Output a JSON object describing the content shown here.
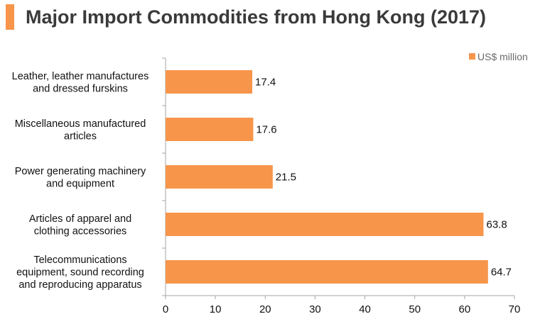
{
  "title": "Major Import Commodities from Hong Kong (2017)",
  "colors": {
    "accent": "#f7954a",
    "axis": "#a6a6a6"
  },
  "chart_data": {
    "type": "bar",
    "orientation": "horizontal",
    "title": "Major Import Commodities from Hong Kong (2017)",
    "categories": [
      [
        "Leather, leather manufactures",
        "and dressed furskins"
      ],
      [
        "Miscellaneous manufactured",
        "articles"
      ],
      [
        "Power generating machinery",
        "and equipment"
      ],
      [
        "Articles of apparel and",
        "clothing accessories"
      ],
      [
        "Telecommunications",
        "equipment, sound recording",
        "and reproducing apparatus"
      ]
    ],
    "series": [
      {
        "name": "US$ million",
        "values": [
          17.4,
          17.6,
          21.5,
          63.8,
          64.7
        ]
      }
    ],
    "data_labels": [
      "17.4",
      "17.6",
      "21.5",
      "63.8",
      "64.7"
    ],
    "xlim": [
      0,
      70
    ],
    "xticks": [
      0,
      10,
      20,
      30,
      40,
      50,
      60,
      70
    ],
    "xlabel": "",
    "ylabel": "",
    "grid": false,
    "legend": {
      "position": "top-right",
      "label": "US$ million"
    }
  }
}
